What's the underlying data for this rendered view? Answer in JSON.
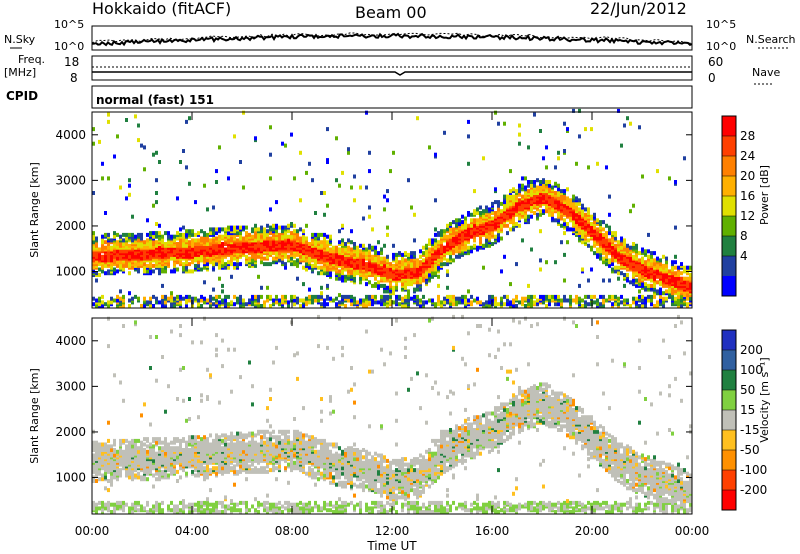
{
  "header": {
    "station": "Hokkaido (fitACF)",
    "beam": "Beam 00",
    "date": "22/Jun/2012"
  },
  "top_panels": {
    "nsky_label": "N.Sky",
    "nsky_ticks": [
      "10^5",
      "10^0"
    ],
    "nsearch_label": "N.Search",
    "nsearch_ticks": [
      "10^5",
      "10^0"
    ],
    "freq_label": "Freq.",
    "freq_unit": "[MHz]",
    "freq_ticks": [
      "18",
      "8"
    ],
    "nave_label": "Nave",
    "nave_ticks": [
      "60",
      "0"
    ],
    "cpid_label": "CPID",
    "cpid_value": "normal (fast) 151"
  },
  "chart_data": [
    {
      "type": "heatmap",
      "name": "power",
      "ylabel": "Slant Range [km]",
      "ylim": [
        200,
        4500
      ],
      "y_ticks": [
        1000,
        2000,
        3000,
        4000
      ],
      "x_ticks": [
        "00:00",
        "04:00",
        "08:00",
        "12:00",
        "16:00",
        "20:00",
        "00:00"
      ],
      "xlim_hours": [
        0,
        24
      ],
      "colorbar": {
        "label": "Power [dB]",
        "ticks": [
          "28",
          "24",
          "20",
          "16",
          "12",
          "8",
          "4"
        ],
        "colors": [
          "#ff0000",
          "#ff4000",
          "#ff8000",
          "#ffb000",
          "#e0e000",
          "#60b000",
          "#208040",
          "#2040a0",
          "#0000ff"
        ]
      },
      "main_band": {
        "hours": [
          0,
          2,
          4,
          6,
          8,
          9,
          10,
          11,
          12,
          13,
          14,
          15,
          16,
          17,
          18,
          19,
          20,
          21,
          22,
          23,
          24
        ],
        "range_km": [
          1300,
          1350,
          1400,
          1500,
          1550,
          1350,
          1200,
          1100,
          900,
          950,
          1500,
          1800,
          2000,
          2400,
          2600,
          2300,
          1800,
          1300,
          1000,
          800,
          600
        ]
      }
    },
    {
      "type": "heatmap",
      "name": "velocity",
      "ylabel": "Slant Range [km]",
      "ylim": [
        200,
        4500
      ],
      "y_ticks": [
        1000,
        2000,
        3000,
        4000
      ],
      "x_ticks": [
        "00:00",
        "04:00",
        "08:00",
        "12:00",
        "16:00",
        "20:00",
        "00:00"
      ],
      "xlim_hours": [
        0,
        24
      ],
      "xlabel": "Time UT",
      "colorbar": {
        "label": "Velocity [m s⁻¹]",
        "ticks": [
          "200",
          "100",
          "50",
          "15",
          "-15",
          "-50",
          "-100",
          "-200"
        ],
        "colors": [
          "#2030c0",
          "#3060a0",
          "#208040",
          "#80d040",
          "#c0c0b8",
          "#ffc020",
          "#ff9000",
          "#ff4000",
          "#ff0000"
        ]
      }
    }
  ]
}
